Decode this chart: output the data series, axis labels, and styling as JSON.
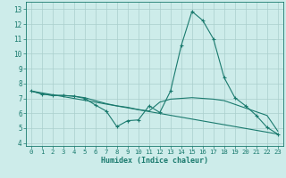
{
  "xlabel": "Humidex (Indice chaleur)",
  "xlim": [
    -0.5,
    23.5
  ],
  "ylim": [
    3.8,
    13.5
  ],
  "yticks": [
    4,
    5,
    6,
    7,
    8,
    9,
    10,
    11,
    12,
    13
  ],
  "xticks": [
    0,
    1,
    2,
    3,
    4,
    5,
    6,
    7,
    8,
    9,
    10,
    11,
    12,
    13,
    14,
    15,
    16,
    17,
    18,
    19,
    20,
    21,
    22,
    23
  ],
  "bg_color": "#cdecea",
  "grid_color": "#aacfcc",
  "line_color": "#1a7a6e",
  "line1_x": [
    0,
    1,
    2,
    3,
    4,
    5,
    6,
    7,
    8,
    9,
    10,
    11,
    12,
    13,
    14,
    15,
    16,
    17,
    18,
    19,
    20,
    21,
    22,
    23
  ],
  "line1_y": [
    7.5,
    7.3,
    7.2,
    7.2,
    7.15,
    7.0,
    6.55,
    6.15,
    5.1,
    5.5,
    5.55,
    6.5,
    6.05,
    7.5,
    10.55,
    12.85,
    12.25,
    11.0,
    8.4,
    7.05,
    6.5,
    5.85,
    5.05,
    4.6
  ],
  "line2_x": [
    0,
    1,
    2,
    3,
    4,
    5,
    6,
    7,
    8,
    9,
    10,
    11,
    12,
    13,
    14,
    15,
    16,
    17,
    18,
    19,
    20,
    21,
    22,
    23
  ],
  "line2_y": [
    7.5,
    7.3,
    7.2,
    7.2,
    7.15,
    7.05,
    6.85,
    6.65,
    6.5,
    6.4,
    6.25,
    6.15,
    6.75,
    6.95,
    7.0,
    7.05,
    7.0,
    6.95,
    6.85,
    6.6,
    6.35,
    6.1,
    5.85,
    4.8
  ],
  "line3_x": [
    0,
    23
  ],
  "line3_y": [
    7.5,
    4.6
  ]
}
